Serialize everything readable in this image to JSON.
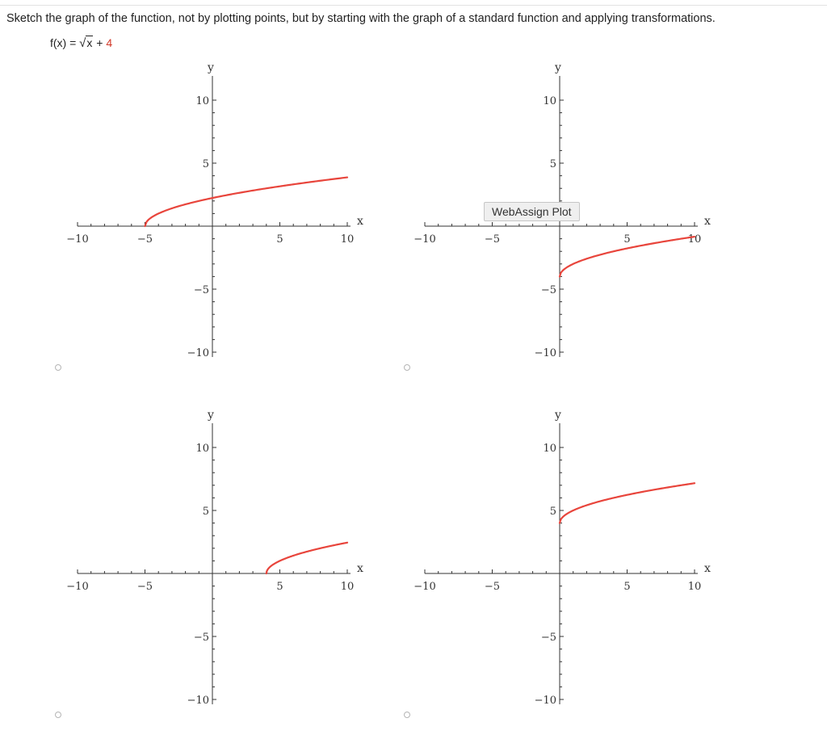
{
  "question": {
    "instructions": "Sketch the graph of the function, not by plotting points, but by starting with the graph of a standard function and applying transformations.",
    "function": {
      "lhs": "f(x) = ",
      "radical": "√",
      "radicand": "x",
      "plus": " + ",
      "constant": "4"
    }
  },
  "tooltip": "WebAssign Plot",
  "colors": {
    "curve": "#e8453c",
    "axis": "#333333",
    "constant": "#d23a2a"
  },
  "choices": [
    {
      "id": "a",
      "selected": false,
      "curve": {
        "shift_x": -5,
        "shift_y": 0
      }
    },
    {
      "id": "b",
      "selected": false,
      "curve": {
        "shift_x": 0,
        "shift_y": -4
      }
    },
    {
      "id": "c",
      "selected": false,
      "curve": {
        "shift_x": 4,
        "shift_y": 0
      }
    },
    {
      "id": "d",
      "selected": false,
      "curve": {
        "shift_x": 0,
        "shift_y": 4
      }
    }
  ],
  "plot": {
    "xlabel": "x",
    "ylabel": "y",
    "xlim": [
      -10,
      10
    ],
    "ylim": [
      -10,
      10
    ],
    "x_tick_labels": [
      "−10",
      "−5",
      "5",
      "10"
    ],
    "y_tick_labels": [
      "10",
      "5",
      "−5",
      "−10"
    ]
  },
  "chart_data": [
    {
      "type": "line",
      "function": "y = sqrt(x + 5)",
      "x": [
        -5,
        -4,
        -1,
        4,
        10
      ],
      "y": [
        0,
        1,
        2.45,
        3,
        3.87
      ],
      "xlim": [
        -10,
        10
      ],
      "ylim": [
        -10,
        10
      ]
    },
    {
      "type": "line",
      "function": "y = sqrt(x) - 4",
      "x": [
        0,
        1,
        4,
        9,
        10
      ],
      "y": [
        -4,
        -3,
        -2,
        -1,
        -0.84
      ],
      "xlim": [
        -10,
        10
      ],
      "ylim": [
        -10,
        10
      ]
    },
    {
      "type": "line",
      "function": "y = sqrt(x - 4)",
      "x": [
        4,
        5,
        8,
        10
      ],
      "y": [
        0,
        1,
        2,
        2.45
      ],
      "xlim": [
        -10,
        10
      ],
      "ylim": [
        -10,
        10
      ]
    },
    {
      "type": "line",
      "function": "y = sqrt(x) + 4",
      "x": [
        0,
        1,
        4,
        9,
        10
      ],
      "y": [
        4,
        5,
        6,
        7,
        7.16
      ],
      "xlim": [
        -10,
        10
      ],
      "ylim": [
        -10,
        10
      ]
    }
  ]
}
